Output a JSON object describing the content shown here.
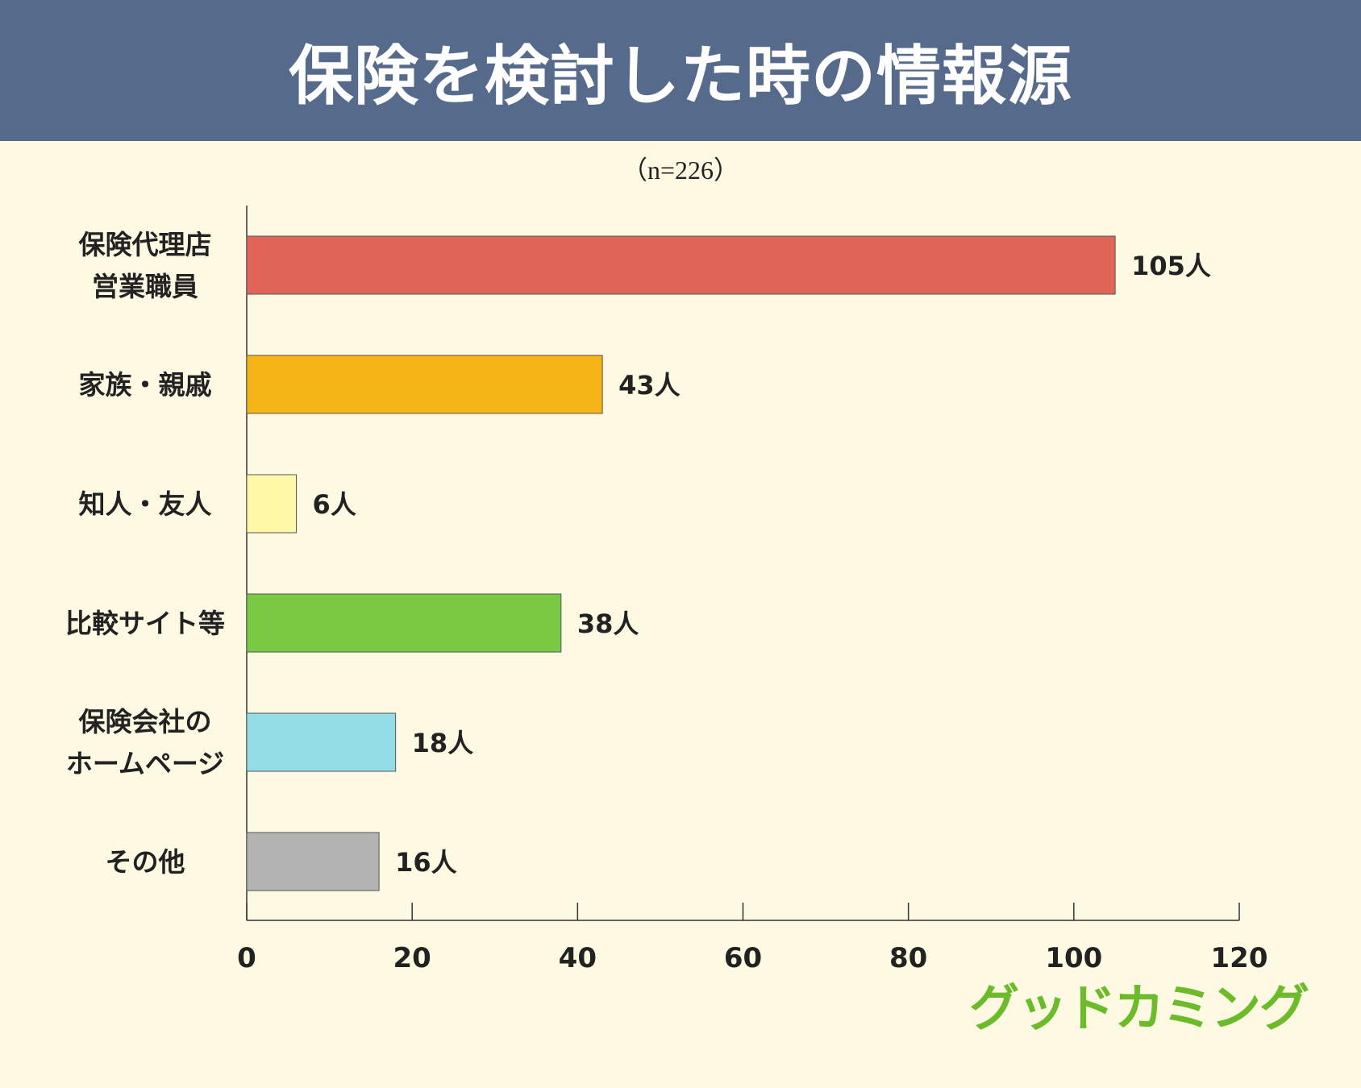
{
  "header": {
    "title": "保険を検討した時の情報源"
  },
  "subtitle": "（n=226）",
  "logo": {
    "text": "グッドカミング",
    "color": "#6cbb2b"
  },
  "chart_data": {
    "type": "bar",
    "orientation": "horizontal",
    "title": "保険を検討した時の情報源",
    "subtitle": "（n=226）",
    "categories": [
      [
        "保険代理店",
        "営業職員"
      ],
      [
        "家族・親戚"
      ],
      [
        "知人・友人"
      ],
      [
        "比較サイト等"
      ],
      [
        "保険会社の",
        "ホームページ"
      ],
      [
        "その他"
      ]
    ],
    "values": [
      105,
      43,
      6,
      38,
      18,
      16
    ],
    "value_labels": [
      "105人",
      "43人",
      "6人",
      "38人",
      "18人",
      "16人"
    ],
    "colors": [
      "#e06458",
      "#f5b416",
      "#fff8a6",
      "#7ac943",
      "#92dde6",
      "#b3b3b3"
    ],
    "xlim": [
      0,
      120
    ],
    "xticks": [
      0,
      20,
      40,
      60,
      80,
      100,
      120
    ],
    "grid": false,
    "legend": "none"
  }
}
